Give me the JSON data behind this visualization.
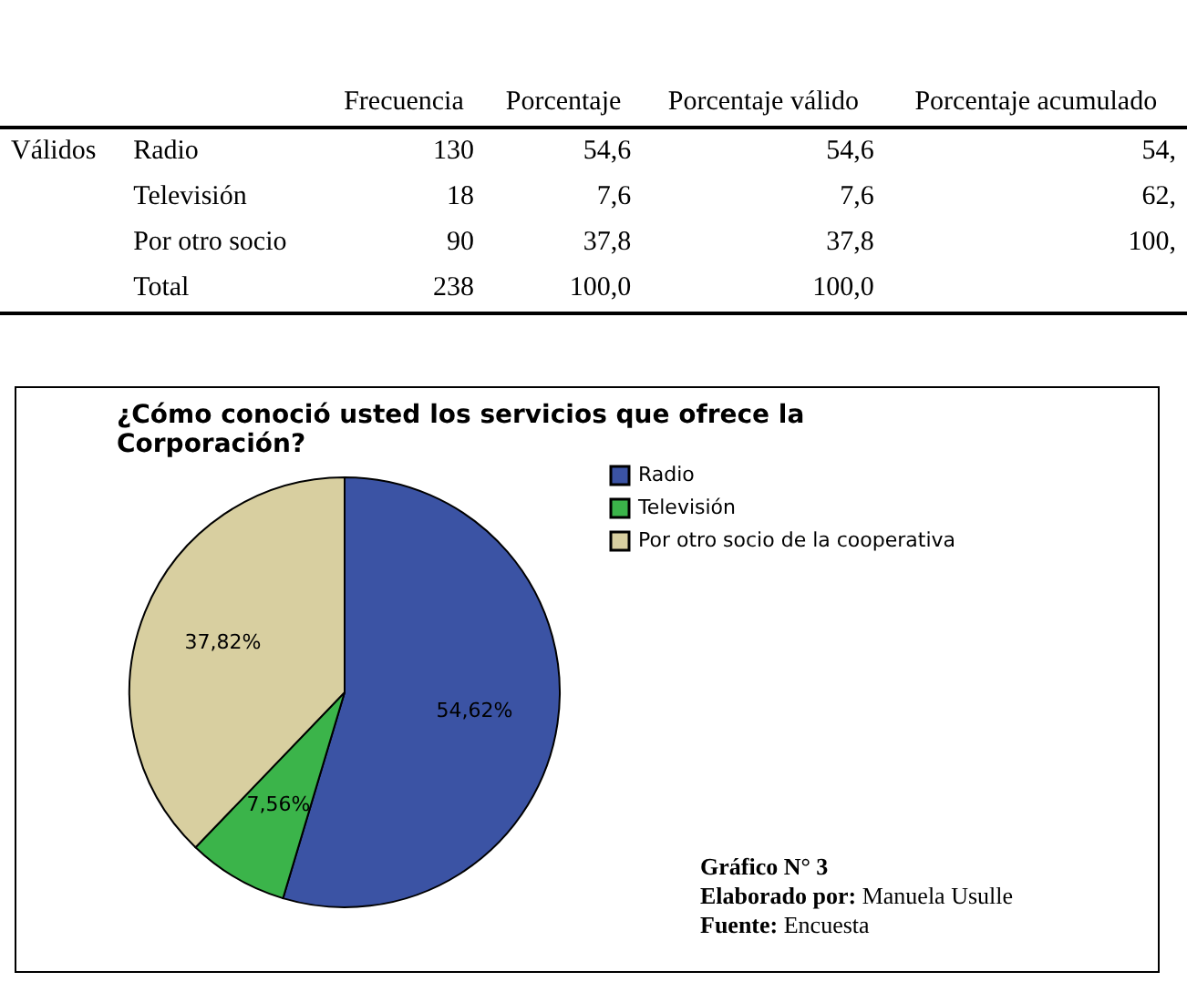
{
  "chart_data": [
    {
      "type": "other",
      "annotations": [
        "Frecuencia",
        "Porcentaje",
        "Porcentaje válido",
        "Porcentaje acumulado",
        "Válidos",
        "Radio",
        "130",
        "54,6",
        "54,6",
        "54,",
        "Televisión",
        "18",
        "7,6",
        "7,6",
        "62,",
        "Por otro socio",
        "90",
        "37,8",
        "37,8",
        "100,",
        "Total",
        "238",
        "100,0",
        "100,0"
      ]
    },
    {
      "type": "pie",
      "title": "¿Cómo conoció usted los servicios que ofrece la Corporación?",
      "categories": [
        "Radio",
        "Televisión",
        "Por otro socio de la cooperativa"
      ],
      "values": [
        54.62,
        7.56,
        37.82
      ],
      "colors": [
        "#3b53a4",
        "#3bb44a",
        "#d8cfa0"
      ],
      "value_labels": [
        "54,62%",
        "7,56%",
        "37,82%"
      ],
      "legend": "right",
      "annotations": [
        "Gráfico N° 3",
        "Elaborado por: Manuela Usulle",
        "Fuente: Encuesta"
      ]
    }
  ]
}
